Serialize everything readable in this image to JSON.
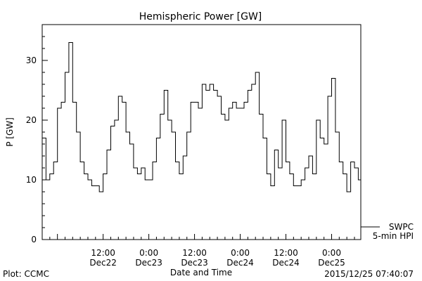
{
  "chart_data": {
    "type": "line",
    "title": "Hemispheric Power [GW]",
    "xlabel": "Date and Time",
    "ylabel": "P [GW]",
    "xlim": [
      "2015-12-21T20:00",
      "2015-12-25T07:40"
    ],
    "ylim": [
      0,
      36
    ],
    "y_ticks": [
      0,
      10,
      20,
      30
    ],
    "x_tick_labels": [
      {
        "time": "12:00",
        "date": "Dec22"
      },
      {
        "time": "0:00",
        "date": "Dec23"
      },
      {
        "time": "12:00",
        "date": "Dec23"
      },
      {
        "time": "0:00",
        "date": "Dec24"
      },
      {
        "time": "12:00",
        "date": "Dec24"
      },
      {
        "time": "0:00",
        "date": "Dec25"
      }
    ],
    "grid": false,
    "legend": [
      "SWPC",
      "5-min HPI"
    ],
    "series": [
      {
        "x": [
          "2015-12-21T20:00",
          "2015-12-21T21:00",
          "2015-12-21T22:00",
          "2015-12-21T23:00",
          "2015-12-22T00:00",
          "2015-12-22T01:00",
          "2015-12-22T02:00",
          "2015-12-22T03:00",
          "2015-12-22T04:00",
          "2015-12-22T05:00",
          "2015-12-22T06:00",
          "2015-12-22T07:00",
          "2015-12-22T08:00",
          "2015-12-22T09:00",
          "2015-12-22T10:00",
          "2015-12-22T11:00",
          "2015-12-22T12:00",
          "2015-12-22T13:00",
          "2015-12-22T14:00",
          "2015-12-22T15:00",
          "2015-12-22T16:00",
          "2015-12-22T17:00",
          "2015-12-22T18:00",
          "2015-12-22T19:00",
          "2015-12-22T20:00",
          "2015-12-22T21:00",
          "2015-12-22T22:00",
          "2015-12-22T23:00",
          "2015-12-23T00:00",
          "2015-12-23T01:00",
          "2015-12-23T02:00",
          "2015-12-23T03:00",
          "2015-12-23T04:00",
          "2015-12-23T05:00",
          "2015-12-23T06:00",
          "2015-12-23T07:00",
          "2015-12-23T08:00",
          "2015-12-23T09:00",
          "2015-12-23T10:00",
          "2015-12-23T11:00",
          "2015-12-23T12:00",
          "2015-12-23T13:00",
          "2015-12-23T14:00",
          "2015-12-23T15:00",
          "2015-12-23T16:00",
          "2015-12-23T17:00",
          "2015-12-23T18:00",
          "2015-12-23T19:00",
          "2015-12-23T20:00",
          "2015-12-23T21:00",
          "2015-12-23T22:00",
          "2015-12-23T23:00",
          "2015-12-24T00:00",
          "2015-12-24T01:00",
          "2015-12-24T02:00",
          "2015-12-24T03:00",
          "2015-12-24T04:00",
          "2015-12-24T05:00",
          "2015-12-24T06:00",
          "2015-12-24T07:00",
          "2015-12-24T08:00",
          "2015-12-24T09:00",
          "2015-12-24T10:00",
          "2015-12-24T11:00",
          "2015-12-24T12:00",
          "2015-12-24T13:00",
          "2015-12-24T14:00",
          "2015-12-24T15:00",
          "2015-12-24T16:00",
          "2015-12-24T17:00",
          "2015-12-24T18:00",
          "2015-12-24T19:00",
          "2015-12-24T20:00",
          "2015-12-24T21:00",
          "2015-12-24T22:00",
          "2015-12-24T23:00",
          "2015-12-25T00:00",
          "2015-12-25T01:00",
          "2015-12-25T02:00",
          "2015-12-25T03:00",
          "2015-12-25T04:00",
          "2015-12-25T05:00",
          "2015-12-25T06:00",
          "2015-12-25T07:00"
        ],
        "values": [
          17,
          10,
          11,
          13,
          22,
          23,
          28,
          33,
          23,
          18,
          13,
          11,
          10,
          9,
          9,
          8,
          11,
          15,
          19,
          20,
          24,
          23,
          18,
          16,
          12,
          11,
          12,
          10,
          10,
          13,
          17,
          21,
          25,
          20,
          18,
          13,
          11,
          14,
          18,
          23,
          23,
          22,
          26,
          25,
          26,
          25,
          24,
          21,
          20,
          22,
          23,
          22,
          22,
          23,
          25,
          26,
          28,
          21,
          17,
          11,
          9,
          15,
          12,
          20,
          13,
          11,
          9,
          9,
          10,
          12,
          14,
          11,
          20,
          17,
          16,
          24,
          27,
          18,
          13,
          11,
          8,
          13,
          12,
          10
        ]
      }
    ]
  },
  "footer": {
    "left": "Plot: CCMC",
    "right": "2015/12/25 07:40:07"
  }
}
